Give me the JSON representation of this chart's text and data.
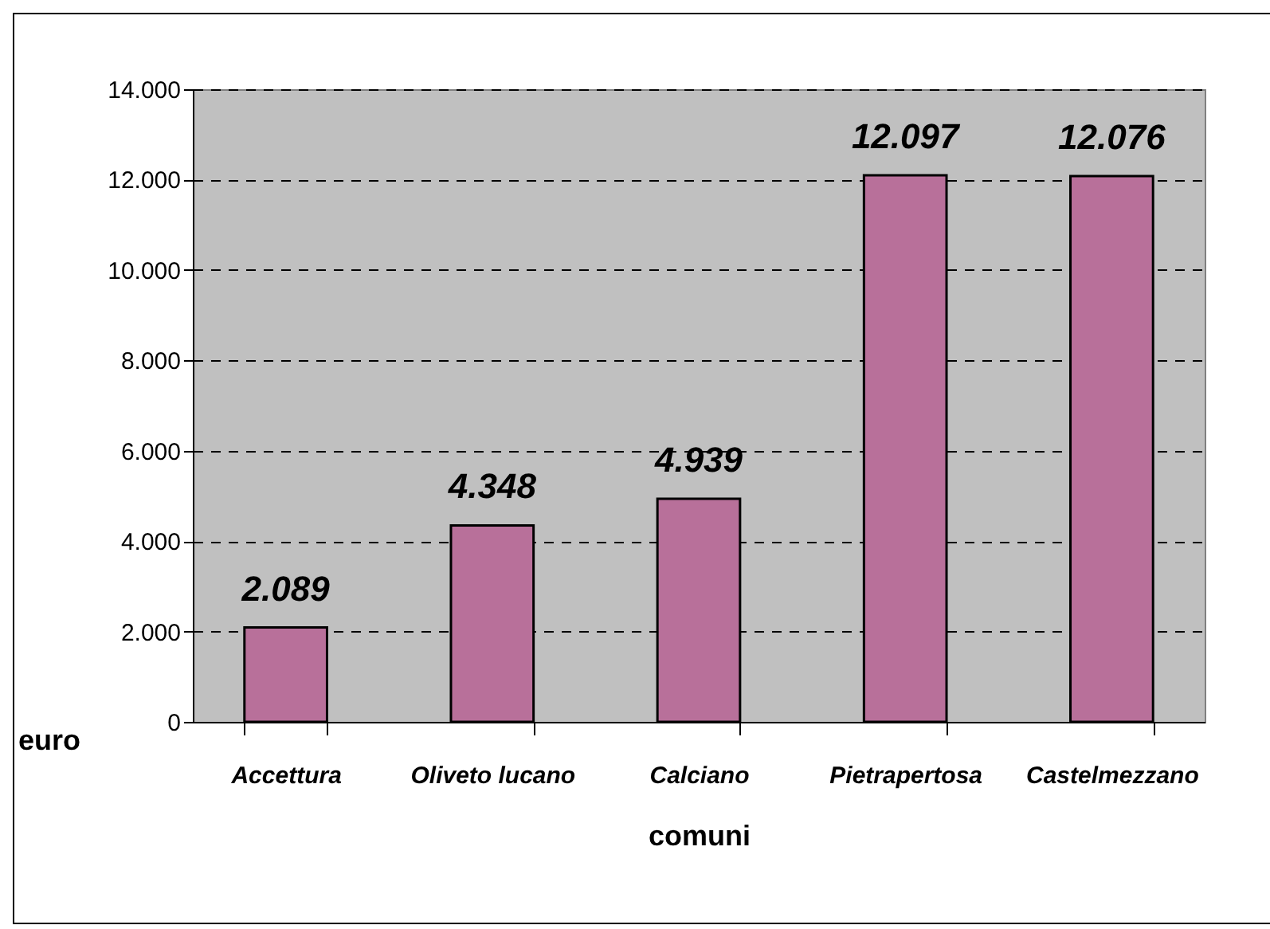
{
  "chart_data": {
    "type": "bar",
    "xlabel": "comuni",
    "ylabel": "euro",
    "categories": [
      "Accettura",
      "Oliveto lucano",
      "Calciano",
      "Pietrapertosa",
      "Castelmezzano"
    ],
    "series": [
      {
        "color": "#b8709a",
        "values": [
          2089,
          4348,
          4939,
          12097,
          12076
        ],
        "value_labels": [
          "2.089",
          "4.348",
          "4.939",
          "12.097",
          "12.076"
        ]
      }
    ],
    "ylim": [
      0,
      14000
    ],
    "yticks": [
      0,
      {
        "value": 2000,
        "label": "2.000"
      },
      {
        "value": 4000,
        "label": "4.000"
      },
      {
        "value": 6000,
        "label": "6.000"
      },
      {
        "value": 8000,
        "label": "8.000"
      },
      {
        "value": 10000,
        "label": "10.000"
      },
      {
        "value": 12000,
        "label": "12.000"
      },
      {
        "value": 14000,
        "label": "14.000"
      }
    ],
    "grid": "y",
    "line_style": "dashed",
    "legend": false
  }
}
